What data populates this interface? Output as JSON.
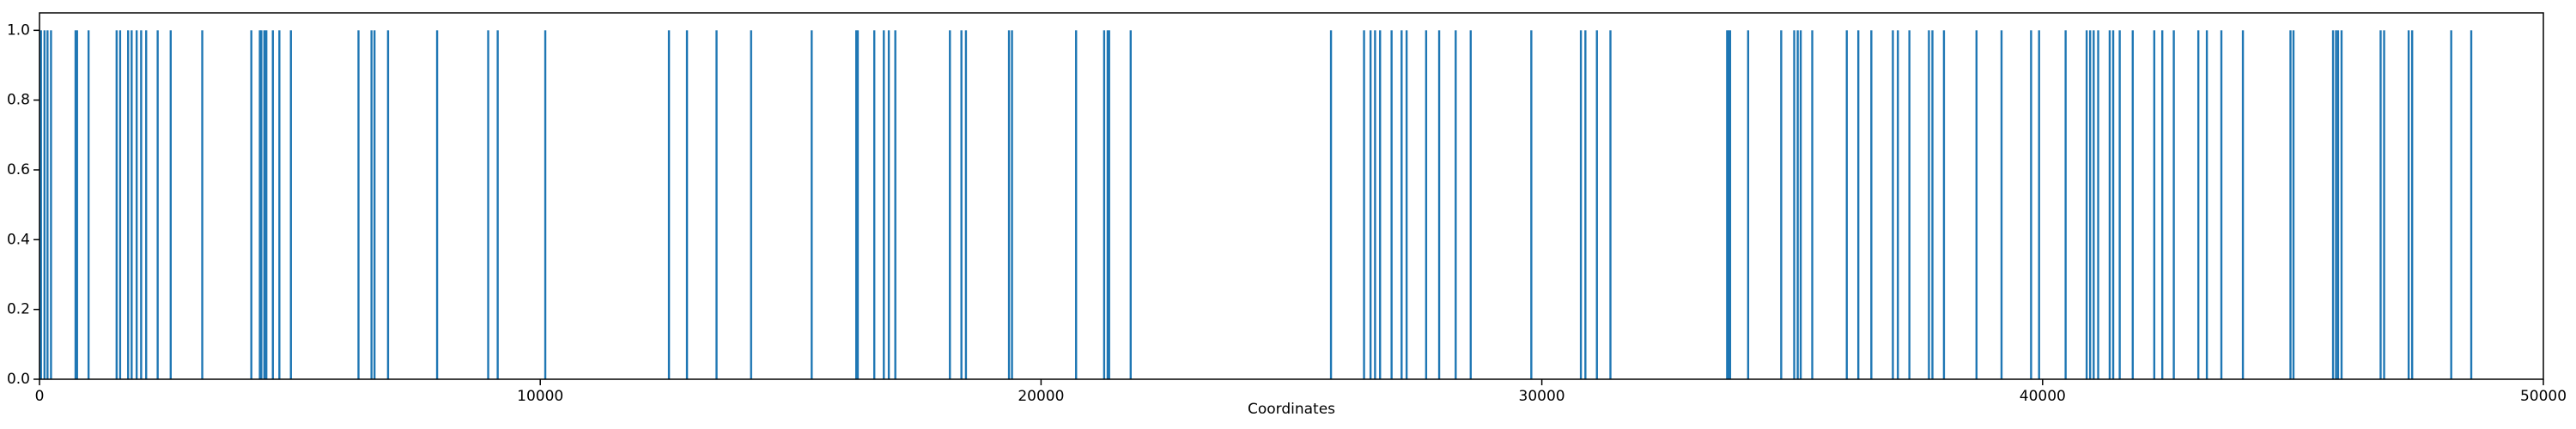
{
  "chart_data": {
    "type": "bar",
    "xlabel": "Coordinates",
    "color": "#1f77b4",
    "x": [
      30,
      100,
      160,
      230,
      720,
      750,
      980,
      1540,
      1610,
      1770,
      1840,
      1940,
      2030,
      2130,
      2360,
      2620,
      3250,
      4230,
      4400,
      4430,
      4490,
      4530,
      4660,
      4790,
      5020,
      6370,
      6630,
      6690,
      6960,
      7940,
      8960,
      9150,
      10100,
      12570,
      12930,
      13520,
      14210,
      15420,
      16310,
      16340,
      16670,
      16860,
      16960,
      17090,
      18180,
      18410,
      18500,
      19360,
      19420,
      20700,
      21260,
      21330,
      21360,
      21790,
      25790,
      26450,
      26580,
      26670,
      26770,
      27000,
      27200,
      27300,
      27690,
      27950,
      28280,
      28580,
      29790,
      30780,
      30870,
      31100,
      31370,
      33700,
      33730,
      33760,
      34120,
      34780,
      35040,
      35110,
      35170,
      35400,
      36090,
      36320,
      36580,
      37010,
      37110,
      37340,
      37730,
      37800,
      38030,
      38680,
      39180,
      39770,
      39930,
      40460,
      40880,
      40950,
      41020,
      41110,
      41340,
      41410,
      41540,
      41800,
      42230,
      42390,
      42620,
      43110,
      43280,
      43570,
      44000,
      44950,
      45010,
      45800,
      45860,
      45900,
      45970,
      46750,
      46820,
      47310,
      47380,
      48160,
      48560
    ],
    "values": [
      1,
      1,
      1,
      1,
      1,
      1,
      1,
      1,
      1,
      1,
      1,
      1,
      1,
      1,
      1,
      1,
      1,
      1,
      1,
      1,
      1,
      1,
      1,
      1,
      1,
      1,
      1,
      1,
      1,
      1,
      1,
      1,
      1,
      1,
      1,
      1,
      1,
      1,
      1,
      1,
      1,
      1,
      1,
      1,
      1,
      1,
      1,
      1,
      1,
      1,
      1,
      1,
      1,
      1,
      1,
      1,
      1,
      1,
      1,
      1,
      1,
      1,
      1,
      1,
      1,
      1,
      1,
      1,
      1,
      1,
      1,
      1,
      1,
      1,
      1,
      1,
      1,
      1,
      1,
      1,
      1,
      1,
      1,
      1,
      1,
      1,
      1,
      1,
      1,
      1,
      1,
      1,
      1,
      1,
      1,
      1,
      1,
      1,
      1,
      1,
      1,
      1,
      1,
      1,
      1,
      1,
      1,
      1,
      1,
      1,
      1,
      1,
      1,
      1,
      1,
      1,
      1,
      1,
      1,
      1,
      1
    ],
    "xlim": [
      0,
      50000
    ],
    "xticks": [
      0,
      10000,
      20000,
      30000,
      40000,
      50000
    ],
    "ylim": [
      0,
      1.05
    ],
    "yticks": [
      {
        "value": 0,
        "label": "0.0"
      },
      {
        "value": 0.2,
        "label": "0.2"
      },
      {
        "value": 0.4,
        "label": "0.4"
      },
      {
        "value": 0.6,
        "label": "0.6"
      },
      {
        "value": 0.8,
        "label": "0.8"
      },
      {
        "value": 1,
        "label": "1.0"
      }
    ]
  }
}
